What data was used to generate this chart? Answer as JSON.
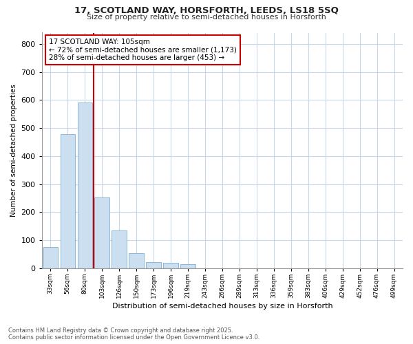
{
  "title1": "17, SCOTLAND WAY, HORSFORTH, LEEDS, LS18 5SQ",
  "title2": "Size of property relative to semi-detached houses in Horsforth",
  "xlabel": "Distribution of semi-detached houses by size in Horsforth",
  "ylabel": "Number of semi-detached properties",
  "categories": [
    "33sqm",
    "56sqm",
    "80sqm",
    "103sqm",
    "126sqm",
    "150sqm",
    "173sqm",
    "196sqm",
    "219sqm",
    "243sqm",
    "266sqm",
    "289sqm",
    "313sqm",
    "336sqm",
    "359sqm",
    "383sqm",
    "406sqm",
    "429sqm",
    "452sqm",
    "476sqm",
    "499sqm"
  ],
  "values": [
    75,
    478,
    590,
    253,
    135,
    53,
    22,
    18,
    14,
    0,
    0,
    0,
    0,
    0,
    0,
    0,
    0,
    0,
    0,
    0,
    0
  ],
  "bar_color": "#ccdff0",
  "bar_edge_color": "#7bafd4",
  "vline_color": "#cc0000",
  "vline_x": 2.5,
  "annotation_title": "17 SCOTLAND WAY: 105sqm",
  "annotation_line1": "← 72% of semi-detached houses are smaller (1,173)",
  "annotation_line2": "28% of semi-detached houses are larger (453) →",
  "annotation_box_edgecolor": "#cc0000",
  "ylim": [
    0,
    840
  ],
  "yticks": [
    0,
    100,
    200,
    300,
    400,
    500,
    600,
    700,
    800
  ],
  "bg_color": "#ffffff",
  "grid_color": "#c8d8e8",
  "fig_bg_color": "#ffffff",
  "footer1": "Contains HM Land Registry data © Crown copyright and database right 2025.",
  "footer2": "Contains public sector information licensed under the Open Government Licence v3.0."
}
